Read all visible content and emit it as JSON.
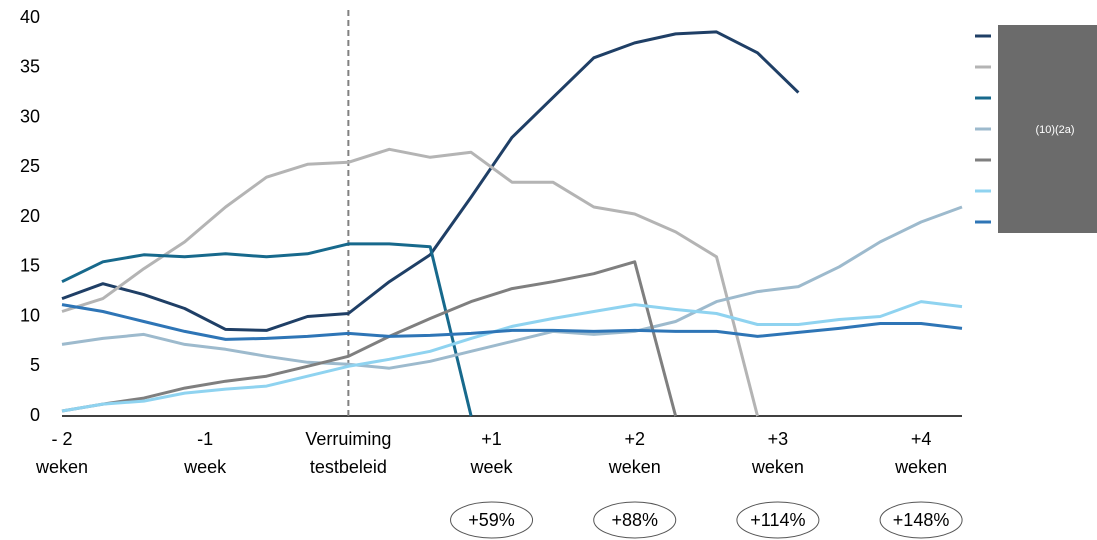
{
  "chart_data": {
    "type": "line",
    "x": [
      -14,
      -12,
      -10,
      -8,
      -6,
      -4,
      -2,
      0,
      2,
      4,
      6,
      8,
      10,
      12,
      14,
      16,
      18,
      20,
      22,
      24,
      26,
      28,
      30
    ],
    "xlim": [
      -14,
      30
    ],
    "xticks": [
      {
        "value": -14,
        "label": "- 2\nweken"
      },
      {
        "value": -7,
        "label": "-1\nweek"
      },
      {
        "value": 0,
        "label": "Verruiming\ntestbeleid"
      },
      {
        "value": 7,
        "label": "+1\nweek"
      },
      {
        "value": 14,
        "label": "+2\nweken"
      },
      {
        "value": 21,
        "label": "+3\nweken"
      },
      {
        "value": 28,
        "label": "+4\nweken"
      }
    ],
    "ylim": [
      0,
      40
    ],
    "yticks": [
      0,
      5,
      10,
      15,
      20,
      25,
      30,
      35,
      40
    ],
    "vline": 0,
    "grid": false,
    "legend_text": "(10)(2a)",
    "annotations": [
      {
        "x": 7,
        "text": "+59%"
      },
      {
        "x": 14,
        "text": "+88%"
      },
      {
        "x": 21,
        "text": "+114%"
      },
      {
        "x": 28,
        "text": "+148%"
      }
    ],
    "series": [
      {
        "color": "#1f3f66",
        "values": [
          11.8,
          13.3,
          12.2,
          10.8,
          8.7,
          8.6,
          10.0,
          10.3,
          13.5,
          16.2,
          22,
          28,
          32,
          36,
          37.5,
          38.4,
          38.6,
          36.5,
          32.5,
          null,
          null,
          null,
          null
        ]
      },
      {
        "color": "#b4b4b4",
        "values": [
          10.5,
          11.8,
          14.8,
          17.5,
          21,
          24,
          25.3,
          25.5,
          26.8,
          26,
          26.5,
          23.5,
          23.5,
          21,
          20.3,
          18.5,
          16,
          0,
          null,
          null,
          null,
          null,
          null
        ]
      },
      {
        "color": "#17698c",
        "values": [
          13.5,
          15.5,
          16.2,
          16,
          16.3,
          16,
          16.3,
          17.3,
          17.3,
          17,
          0,
          null,
          null,
          null,
          null,
          null,
          null,
          null,
          null,
          null,
          null,
          null,
          null
        ]
      },
      {
        "color": "#9dbacd",
        "values": [
          7.2,
          7.8,
          8.2,
          7.2,
          6.7,
          6,
          5.4,
          5.2,
          4.8,
          5.5,
          6.5,
          7.5,
          8.5,
          8.2,
          8.5,
          9.5,
          11.5,
          12.5,
          13,
          15,
          17.5,
          19.5,
          21
        ]
      },
      {
        "color": "#7f7f7f",
        "values": [
          0.5,
          1.2,
          1.8,
          2.8,
          3.5,
          4,
          5,
          6,
          8,
          9.8,
          11.5,
          12.8,
          13.5,
          14.3,
          15.5,
          0,
          null,
          null,
          null,
          null,
          null,
          null,
          null
        ]
      },
      {
        "color": "#8fd3f0",
        "values": [
          0.5,
          1.2,
          1.5,
          2.3,
          2.7,
          3,
          4,
          5,
          5.7,
          6.5,
          7.8,
          9,
          9.8,
          10.5,
          11.2,
          10.7,
          10.3,
          9.2,
          9.2,
          9.7,
          10,
          11.5,
          11
        ]
      },
      {
        "color": "#2e75b6",
        "values": [
          11.2,
          10.5,
          9.5,
          8.5,
          7.7,
          7.8,
          8,
          8.3,
          8,
          8.1,
          8.3,
          8.6,
          8.6,
          8.5,
          8.6,
          8.5,
          8.5,
          8,
          8.4,
          8.8,
          9.3,
          9.3,
          8.8
        ]
      }
    ]
  }
}
